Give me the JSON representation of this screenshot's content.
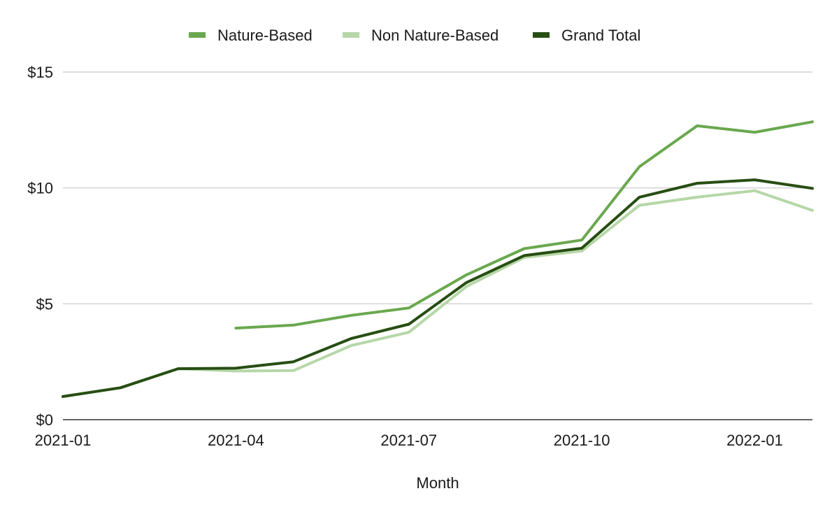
{
  "chart_data": {
    "type": "line",
    "title": "",
    "xlabel": "Month",
    "ylabel": "",
    "x": [
      "2021-01",
      "2021-02",
      "2021-03",
      "2021-04",
      "2021-05",
      "2021-06",
      "2021-07",
      "2021-08",
      "2021-09",
      "2021-10",
      "2021-11",
      "2021-12",
      "2022-01",
      "2022-02"
    ],
    "x_ticks": [
      "2021-01",
      "2021-04",
      "2021-07",
      "2021-10",
      "2022-01"
    ],
    "ylim": [
      0,
      15
    ],
    "y_ticks": [
      {
        "value": 0,
        "label": "$0"
      },
      {
        "value": 5,
        "label": "$5"
      },
      {
        "value": 10,
        "label": "$10"
      },
      {
        "value": 15,
        "label": "$15"
      }
    ],
    "grid": true,
    "legend_position": "top-center",
    "series": [
      {
        "name": "Nature-Based",
        "color": "#6aa84f",
        "values": [
          null,
          null,
          null,
          3.95,
          4.08,
          4.5,
          4.82,
          6.25,
          7.38,
          7.75,
          10.92,
          12.68,
          12.4,
          12.85
        ]
      },
      {
        "name": "Non Nature-Based",
        "color": "#b6d7a8",
        "values": [
          1.0,
          1.38,
          2.2,
          2.1,
          2.12,
          3.2,
          3.77,
          5.75,
          7.0,
          7.28,
          9.25,
          9.6,
          9.88,
          9.03
        ]
      },
      {
        "name": "Grand Total",
        "color": "#274e13",
        "values": [
          1.0,
          1.38,
          2.2,
          2.22,
          2.5,
          3.5,
          4.12,
          5.92,
          7.08,
          7.4,
          9.6,
          10.2,
          10.35,
          9.98
        ]
      }
    ]
  }
}
